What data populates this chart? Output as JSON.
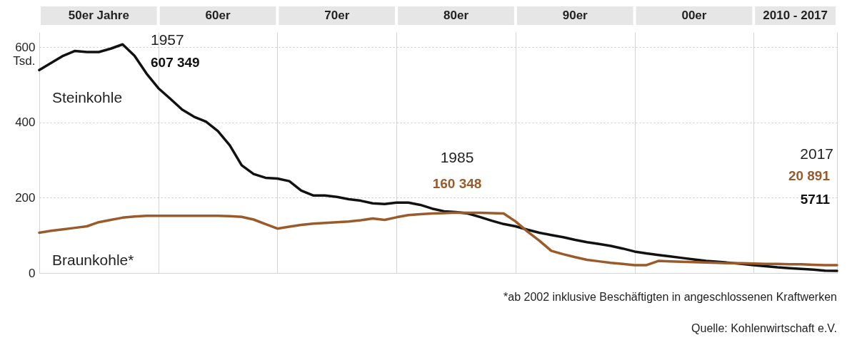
{
  "chart_data": {
    "type": "line",
    "categories": [
      null,
      null,
      null,
      null,
      null,
      null,
      null,
      null,
      null,
      null,
      null,
      null,
      null,
      null,
      null,
      null,
      null,
      null,
      null,
      null,
      null,
      null,
      null,
      null,
      null,
      null,
      null,
      null,
      null,
      null,
      null,
      null,
      null,
      null,
      null,
      null,
      null,
      null,
      null,
      null,
      null,
      null,
      null,
      null,
      null,
      null,
      null,
      null,
      null,
      null,
      null,
      null,
      null,
      null,
      null,
      null,
      null,
      null,
      null,
      null,
      null,
      null,
      null,
      null,
      null,
      null,
      null,
      null
    ],
    "ylim": [
      0,
      640
    ],
    "yticks": [
      0,
      200,
      400,
      600
    ],
    "ylabel": "Tsd.",
    "grid": true,
    "legend": false,
    "line_style": "solid",
    "series": [
      {
        "name": "Steinkohle",
        "color": "#111111",
        "values": [
          539,
          558,
          577,
          590,
          587,
          587,
          596,
          607.349,
          577,
          530,
          491,
          463,
          434,
          415,
          402,
          377,
          339,
          286,
          263,
          253,
          251,
          244,
          219,
          206,
          206,
          202,
          196,
          192,
          185,
          183,
          187,
          187,
          181,
          171,
          164,
          162,
          158,
          149,
          139,
          130,
          124,
          115,
          107,
          101,
          95,
          88,
          82,
          77,
          72,
          65,
          57,
          52,
          48,
          44,
          40,
          36,
          32,
          30,
          27,
          24,
          21,
          18,
          15,
          13,
          11,
          9,
          6,
          5.711
        ]
      },
      {
        "name": "Braunkohle*",
        "color": "#9b5a2a",
        "values": [
          107,
          112,
          116,
          120,
          124,
          135,
          141,
          147,
          150,
          152,
          152,
          152,
          152,
          152,
          152,
          152,
          151,
          149,
          142,
          130,
          118,
          123,
          128,
          131,
          133,
          135,
          137,
          140,
          145,
          141,
          148,
          154,
          156,
          158,
          159,
          160.348,
          160,
          160,
          159,
          158,
          137,
          110,
          86,
          59,
          50,
          42,
          35,
          31,
          27,
          24,
          21,
          21,
          32,
          31,
          30,
          29,
          28,
          27,
          26,
          26,
          25,
          24,
          24,
          23,
          23,
          22,
          21,
          20.891
        ]
      }
    ],
    "annotations": [
      "1957",
      "607 349",
      "1985",
      "160 348",
      "2017",
      "20 891",
      "5711",
      "50er Jahre",
      "60er",
      "70er",
      "80er",
      "90er",
      "00er",
      "2010 - 2017",
      "*ab 2002 inklusive Beschäftigten in angeschlossenen Kraftwerken",
      "Quelle: Kohlenwirtschaft e.V."
    ]
  }
}
